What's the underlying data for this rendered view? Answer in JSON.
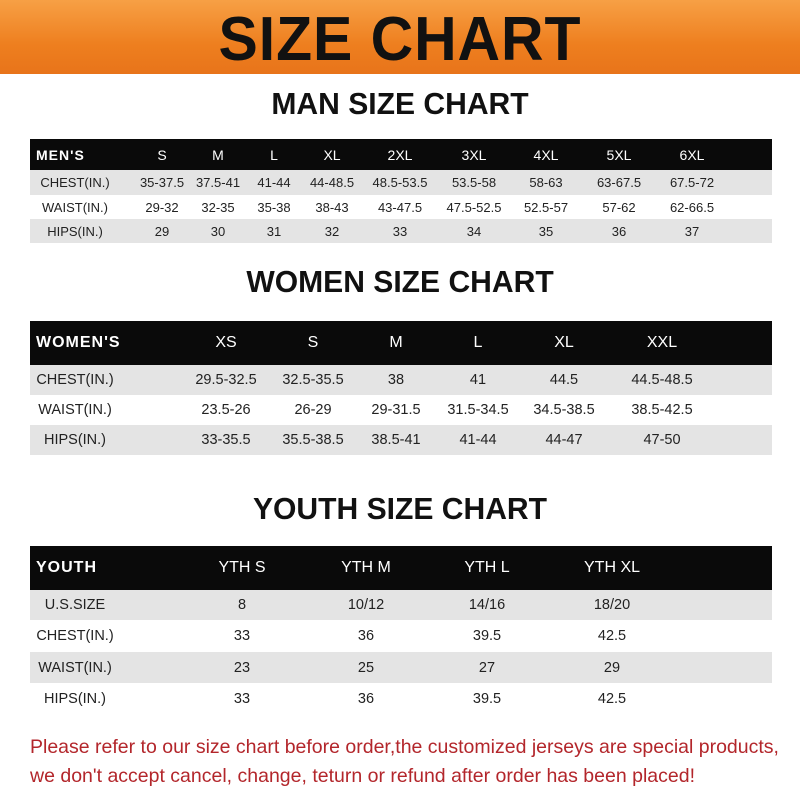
{
  "banner": {
    "title": "SIZE CHART"
  },
  "men": {
    "title": "MAN SIZE CHART",
    "header": [
      "MEN'S",
      "S",
      "M",
      "L",
      "XL",
      "2XL",
      "3XL",
      "4XL",
      "5XL",
      "6XL"
    ],
    "rows": [
      [
        "CHEST(IN.)",
        "35-37.5",
        "37.5-41",
        "41-44",
        "44-48.5",
        "48.5-53.5",
        "53.5-58",
        "58-63",
        "63-67.5",
        "67.5-72"
      ],
      [
        "WAIST(IN.)",
        "29-32",
        "32-35",
        "35-38",
        "38-43",
        "43-47.5",
        "47.5-52.5",
        "52.5-57",
        "57-62",
        "62-66.5"
      ],
      [
        "HIPS(IN.)",
        "29",
        "30",
        "31",
        "32",
        "33",
        "34",
        "35",
        "36",
        "37"
      ]
    ]
  },
  "women": {
    "title": "WOMEN SIZE CHART",
    "header": [
      "WOMEN'S",
      "XS",
      "S",
      "M",
      "L",
      "XL",
      "XXL"
    ],
    "rows": [
      [
        "CHEST(IN.)",
        "29.5-32.5",
        "32.5-35.5",
        "38",
        "41",
        "44.5",
        "44.5-48.5"
      ],
      [
        "WAIST(IN.)",
        "23.5-26",
        "26-29",
        "29-31.5",
        "31.5-34.5",
        "34.5-38.5",
        "38.5-42.5"
      ],
      [
        "HIPS(IN.)",
        "33-35.5",
        "35.5-38.5",
        "38.5-41",
        "41-44",
        "44-47",
        "47-50"
      ]
    ]
  },
  "youth": {
    "title": "YOUTH SIZE CHART",
    "header": [
      "YOUTH",
      "YTH S",
      "YTH M",
      "YTH L",
      "YTH XL"
    ],
    "rows": [
      [
        "U.S.SIZE",
        "8",
        "10/12",
        "14/16",
        "18/20"
      ],
      [
        "CHEST(IN.)",
        "33",
        "36",
        "39.5",
        "42.5"
      ],
      [
        "WAIST(IN.)",
        "23",
        "25",
        "27",
        "29"
      ],
      [
        "HIPS(IN.)",
        "33",
        "36",
        "39.5",
        "42.5"
      ]
    ]
  },
  "note": {
    "line1": "Please refer to our size chart before order,the customized jerseys are special products,",
    "line2": "we don't accept cancel, change, teturn or refund after order has been placed!"
  },
  "colors": {
    "banner": "#ee7f1f",
    "header_row": "#0a0a0a",
    "note_text": "#b3262b"
  }
}
